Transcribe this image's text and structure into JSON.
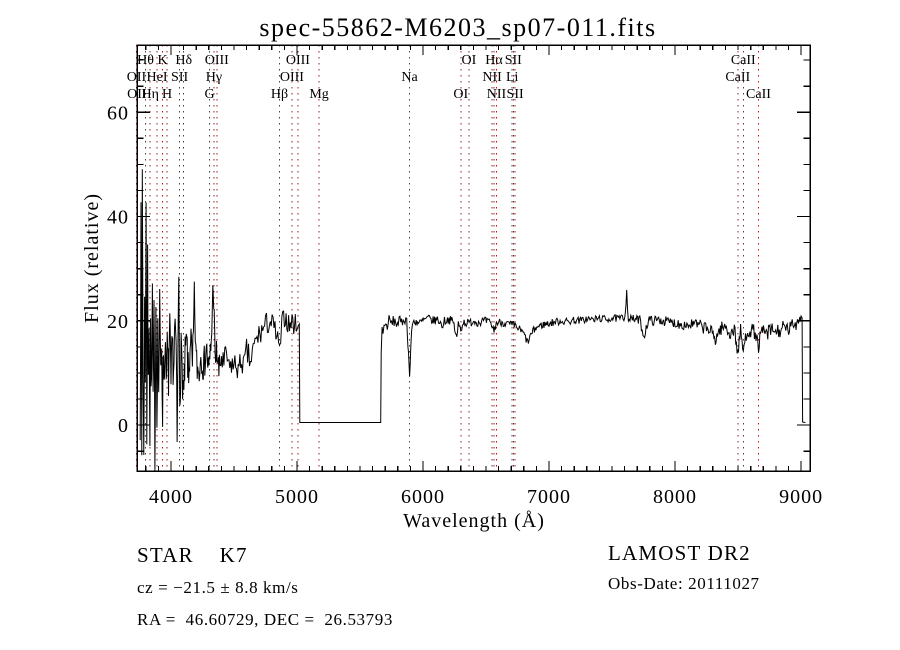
{
  "figure": {
    "title": "spec-55862-M6203_sp07-011.fits",
    "background": "#ffffff"
  },
  "annotations": {
    "class_line": "STAR    K7",
    "survey_line": "LAMOST DR2",
    "cz_line": "cz = −21.5 ± 8.8 km/s",
    "obs_date_line": "Obs-Date: 20111027",
    "radec_line": "RA =  46.60729, DEC =  26.53793"
  },
  "chart_data": {
    "type": "line",
    "title": "spec-55862-M6203_sp07-011.fits",
    "xlabel": "Wavelength (Å)",
    "ylabel": "Flux (relative)",
    "xlim": [
      3730,
      9071
    ],
    "ylim": [
      -8.8,
      72.9
    ],
    "grid": "off",
    "line_color": "#000000",
    "marker_line_color": "#8B2323",
    "x_ticks": {
      "major": [
        4000,
        5000,
        6000,
        7000,
        8000,
        9000
      ],
      "labels": [
        "4000",
        "5000",
        "6000",
        "7000",
        "8000",
        "9000"
      ],
      "minor_step": 100
    },
    "y_ticks": {
      "major": [
        0,
        20,
        40,
        60
      ],
      "labels": [
        "0",
        "20",
        "40",
        "60"
      ],
      "minor_step": 5
    },
    "spectral_lines": [
      {
        "label": "Hθ",
        "wavelength": 3798,
        "row": 0
      },
      {
        "label": "K",
        "wavelength": 3933,
        "row": 0
      },
      {
        "label": "Hδ",
        "wavelength": 4101,
        "row": 0
      },
      {
        "label": "OIII",
        "wavelength": 4363,
        "row": 0
      },
      {
        "label": "OIII",
        "wavelength": 5007,
        "row": 0
      },
      {
        "label": "OI",
        "wavelength": 6364,
        "row": 0
      },
      {
        "label": "Hα",
        "wavelength": 6563,
        "row": 0
      },
      {
        "label": "SII",
        "wavelength": 6716,
        "row": 0
      },
      {
        "label": "CaII",
        "wavelength": 8542,
        "row": 0
      },
      {
        "label": "OII",
        "wavelength": 3726,
        "row": 1
      },
      {
        "label": "HeI",
        "wavelength": 3889,
        "row": 1
      },
      {
        "label": "SII",
        "wavelength": 4068,
        "row": 1
      },
      {
        "label": "Hγ",
        "wavelength": 4340,
        "row": 1
      },
      {
        "label": "OIII",
        "wavelength": 4959,
        "row": 1
      },
      {
        "label": "Na",
        "wavelength": 5893,
        "row": 1
      },
      {
        "label": "NII",
        "wavelength": 6548,
        "row": 1
      },
      {
        "label": "Li",
        "wavelength": 6708,
        "row": 1
      },
      {
        "label": "CaII",
        "wavelength": 8498,
        "row": 1
      },
      {
        "label": "OII",
        "wavelength": 3729,
        "row": 2
      },
      {
        "label": "Hη",
        "wavelength": 3835,
        "row": 2
      },
      {
        "label": "H",
        "wavelength": 3968,
        "row": 2
      },
      {
        "label": "G",
        "wavelength": 4305,
        "row": 2
      },
      {
        "label": "Hβ",
        "wavelength": 4861,
        "row": 2
      },
      {
        "label": "Mg",
        "wavelength": 5175,
        "row": 2
      },
      {
        "label": "OI",
        "wavelength": 6300,
        "row": 2
      },
      {
        "label": "NII",
        "wavelength": 6583,
        "row": 2
      },
      {
        "label": "SII",
        "wavelength": 6731,
        "row": 2
      },
      {
        "label": "CaII",
        "wavelength": 8662,
        "row": 2
      }
    ],
    "spectrum": {
      "gap_regions": [
        [
          5022,
          5664
        ],
        [
          9012,
          9035
        ]
      ],
      "noise_seed": 7,
      "noise_amplitude": [
        [
          3755,
          5
        ],
        [
          4150,
          4
        ],
        [
          4400,
          3
        ],
        [
          4700,
          2.6
        ],
        [
          5010,
          2
        ],
        [
          5022,
          0
        ],
        [
          5664,
          0
        ],
        [
          5675,
          1.3
        ],
        [
          5900,
          0.9
        ],
        [
          6500,
          0.8
        ],
        [
          7500,
          0.7
        ],
        [
          8000,
          1.0
        ],
        [
          8300,
          1.3
        ],
        [
          8900,
          1.6
        ],
        [
          9005,
          1.0
        ],
        [
          9012,
          0
        ],
        [
          9035,
          0
        ]
      ],
      "envelope_points": [
        [
          3755,
          2
        ],
        [
          3762,
          38
        ],
        [
          3768,
          -6
        ],
        [
          3772,
          50
        ],
        [
          3778,
          12
        ],
        [
          3784,
          -8
        ],
        [
          3790,
          28
        ],
        [
          3796,
          8
        ],
        [
          3802,
          44
        ],
        [
          3808,
          -4
        ],
        [
          3814,
          30
        ],
        [
          3820,
          6
        ],
        [
          3826,
          22
        ],
        [
          3832,
          -2
        ],
        [
          3838,
          18
        ],
        [
          3845,
          5
        ],
        [
          3852,
          26
        ],
        [
          3858,
          2
        ],
        [
          3865,
          20
        ],
        [
          3872,
          -7
        ],
        [
          3880,
          24
        ],
        [
          3888,
          4
        ],
        [
          3895,
          18
        ],
        [
          3902,
          7
        ],
        [
          3910,
          22
        ],
        [
          3918,
          10
        ],
        [
          3926,
          16
        ],
        [
          3933,
          3
        ],
        [
          3940,
          15
        ],
        [
          3948,
          8
        ],
        [
          3955,
          20
        ],
        [
          3962,
          5
        ],
        [
          3970,
          15
        ],
        [
          3980,
          9
        ],
        [
          3990,
          18
        ],
        [
          4000,
          7
        ],
        [
          4010,
          16
        ],
        [
          4020,
          10
        ],
        [
          4032,
          20
        ],
        [
          4045,
          8
        ],
        [
          4048,
          -6
        ],
        [
          4055,
          15
        ],
        [
          4062,
          28
        ],
        [
          4070,
          6
        ],
        [
          4080,
          14
        ],
        [
          4092,
          9
        ],
        [
          4102,
          5
        ],
        [
          4112,
          13
        ],
        [
          4125,
          16
        ],
        [
          4140,
          8
        ],
        [
          4155,
          18
        ],
        [
          4170,
          10
        ],
        [
          4185,
          24
        ],
        [
          4200,
          12
        ],
        [
          4220,
          10
        ],
        [
          4240,
          14
        ],
        [
          4260,
          11
        ],
        [
          4280,
          15
        ],
        [
          4300,
          10
        ],
        [
          4320,
          16
        ],
        [
          4335,
          28
        ],
        [
          4350,
          12
        ],
        [
          4365,
          14
        ],
        [
          4380,
          10
        ],
        [
          4400,
          13
        ],
        [
          4420,
          11
        ],
        [
          4440,
          14
        ],
        [
          4460,
          10
        ],
        [
          4480,
          12
        ],
        [
          4500,
          11
        ],
        [
          4520,
          12
        ],
        [
          4540,
          10
        ],
        [
          4560,
          13
        ],
        [
          4580,
          11
        ],
        [
          4600,
          14
        ],
        [
          4630,
          12
        ],
        [
          4660,
          15
        ],
        [
          4690,
          17
        ],
        [
          4720,
          18
        ],
        [
          4750,
          19
        ],
        [
          4780,
          20
        ],
        [
          4810,
          19
        ],
        [
          4840,
          17
        ],
        [
          4861,
          14
        ],
        [
          4880,
          19
        ],
        [
          4900,
          21
        ],
        [
          4920,
          20
        ],
        [
          4940,
          19
        ],
        [
          4960,
          20
        ],
        [
          4980,
          19
        ],
        [
          5000,
          20
        ],
        [
          5018,
          19
        ],
        [
          5022,
          0.5
        ],
        [
          5664,
          0.5
        ],
        [
          5668,
          14
        ],
        [
          5675,
          18
        ],
        [
          5690,
          19
        ],
        [
          5710,
          19
        ],
        [
          5730,
          20
        ],
        [
          5750,
          19.5
        ],
        [
          5770,
          20
        ],
        [
          5790,
          19.5
        ],
        [
          5810,
          20
        ],
        [
          5830,
          19.5
        ],
        [
          5850,
          20.5
        ],
        [
          5870,
          20
        ],
        [
          5885,
          14
        ],
        [
          5893,
          9
        ],
        [
          5903,
          15
        ],
        [
          5915,
          19.5
        ],
        [
          5940,
          20
        ],
        [
          5970,
          19.5
        ],
        [
          6000,
          20
        ],
        [
          6040,
          20.5
        ],
        [
          6080,
          20
        ],
        [
          6120,
          20.3
        ],
        [
          6150,
          19
        ],
        [
          6170,
          20
        ],
        [
          6200,
          20.3
        ],
        [
          6240,
          19.8
        ],
        [
          6268,
          16.5
        ],
        [
          6280,
          19.5
        ],
        [
          6300,
          18.5
        ],
        [
          6320,
          19.8
        ],
        [
          6360,
          19.5
        ],
        [
          6400,
          20
        ],
        [
          6440,
          19.7
        ],
        [
          6480,
          20
        ],
        [
          6520,
          19.8
        ],
        [
          6550,
          19
        ],
        [
          6563,
          18
        ],
        [
          6580,
          19.5
        ],
        [
          6620,
          19.8
        ],
        [
          6660,
          19.5
        ],
        [
          6700,
          19.2
        ],
        [
          6730,
          19
        ],
        [
          6760,
          18.5
        ],
        [
          6800,
          17.5
        ],
        [
          6830,
          15.8
        ],
        [
          6860,
          17.5
        ],
        [
          6890,
          18.5
        ],
        [
          6920,
          19
        ],
        [
          6960,
          19.3
        ],
        [
          7000,
          19.5
        ],
        [
          7050,
          19.8
        ],
        [
          7100,
          20
        ],
        [
          7150,
          19.8
        ],
        [
          7200,
          20.2
        ],
        [
          7250,
          20
        ],
        [
          7300,
          20.4
        ],
        [
          7350,
          20.2
        ],
        [
          7400,
          20.5
        ],
        [
          7450,
          20.3
        ],
        [
          7500,
          20.5
        ],
        [
          7550,
          20.4
        ],
        [
          7600,
          20.6
        ],
        [
          7616,
          25.5
        ],
        [
          7630,
          20.4
        ],
        [
          7680,
          20.3
        ],
        [
          7720,
          20.2
        ],
        [
          7752,
          17
        ],
        [
          7790,
          20.2
        ],
        [
          7830,
          20
        ],
        [
          7870,
          20.2
        ],
        [
          7910,
          20
        ],
        [
          7950,
          19.8
        ],
        [
          8000,
          19.6
        ],
        [
          8050,
          19.4
        ],
        [
          8100,
          19.2
        ],
        [
          8150,
          19.4
        ],
        [
          8200,
          19
        ],
        [
          8250,
          18.6
        ],
        [
          8290,
          17.8
        ],
        [
          8320,
          16.5
        ],
        [
          8360,
          18.5
        ],
        [
          8400,
          18.8
        ],
        [
          8440,
          17.5
        ],
        [
          8470,
          18.5
        ],
        [
          8498,
          13.8
        ],
        [
          8520,
          18
        ],
        [
          8542,
          14.2
        ],
        [
          8570,
          18
        ],
        [
          8600,
          18.3
        ],
        [
          8630,
          17.8
        ],
        [
          8662,
          15.2
        ],
        [
          8690,
          18
        ],
        [
          8730,
          17.5
        ],
        [
          8770,
          18.2
        ],
        [
          8810,
          17.8
        ],
        [
          8850,
          18.5
        ],
        [
          8890,
          18.2
        ],
        [
          8930,
          19
        ],
        [
          8960,
          19.5
        ],
        [
          8985,
          20.5
        ],
        [
          9000,
          20.8
        ],
        [
          9008,
          20.5
        ],
        [
          9012,
          0.6
        ],
        [
          9035,
          0.5
        ]
      ]
    }
  }
}
